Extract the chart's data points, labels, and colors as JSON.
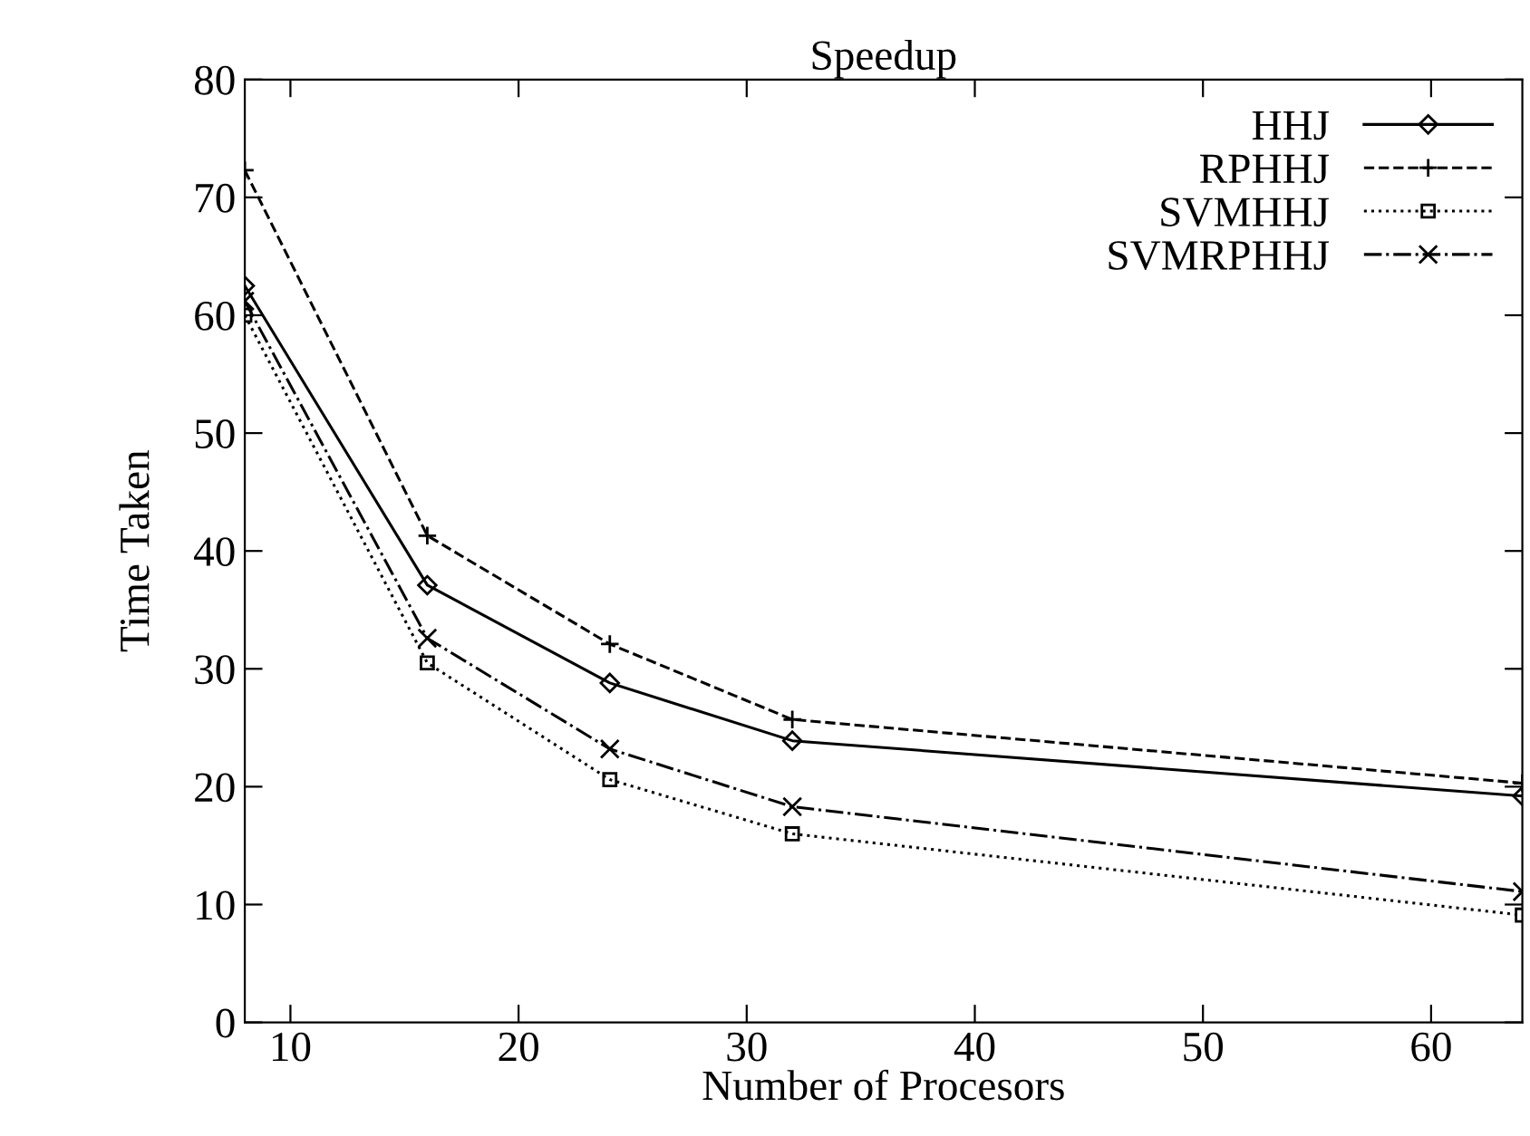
{
  "chart_data": {
    "type": "line",
    "title": "Speedup",
    "xlabel": "Number of Procesors",
    "ylabel": "Time Taken",
    "x": [
      8,
      16,
      24,
      32,
      64
    ],
    "series": [
      {
        "name": "HHJ",
        "color": "#000000",
        "values": [
          62.5,
          37.1,
          28.8,
          23.9,
          19.2
        ],
        "marker": "diamond",
        "line_style": "solid"
      },
      {
        "name": "RPHHJ",
        "color": "#000000",
        "values": [
          72.3,
          41.3,
          32.1,
          25.7,
          20.3
        ],
        "marker": "plus",
        "line_style": "dashed"
      },
      {
        "name": "SVMHHJ",
        "color": "#000000",
        "values": [
          60,
          30.5,
          20.6,
          16.0,
          9.1
        ],
        "marker": "square",
        "line_style": "dotted"
      },
      {
        "name": "SVMRPHHJ",
        "color": "#000000",
        "values": [
          61.2,
          32.6,
          23.2,
          18.3,
          11.1
        ],
        "marker": "cross",
        "line_style": "dashdot"
      }
    ],
    "xlim": [
      8,
      64
    ],
    "ylim": [
      0,
      80
    ],
    "xticks": [
      10,
      20,
      30,
      40,
      50,
      60
    ],
    "yticks": [
      0,
      10,
      20,
      30,
      40,
      50,
      60,
      70,
      80
    ],
    "grid": false,
    "legend": "top right"
  }
}
